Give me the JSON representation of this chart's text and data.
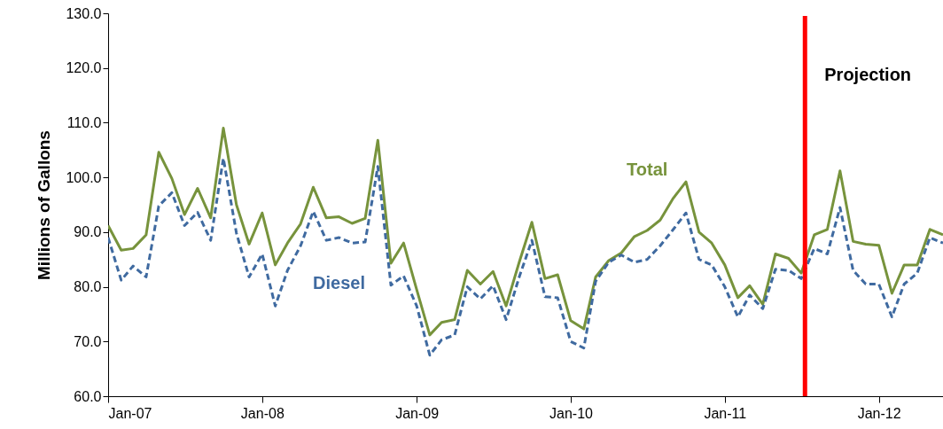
{
  "chart_data": {
    "type": "line",
    "ylabel": "Millions of Gallons",
    "x": [
      "2007-01",
      "2007-02",
      "2007-03",
      "2007-04",
      "2007-05",
      "2007-06",
      "2007-07",
      "2007-08",
      "2007-09",
      "2007-10",
      "2007-11",
      "2007-12",
      "2008-01",
      "2008-02",
      "2008-03",
      "2008-04",
      "2008-05",
      "2008-06",
      "2008-07",
      "2008-08",
      "2008-09",
      "2008-10",
      "2008-11",
      "2008-12",
      "2009-01",
      "2009-02",
      "2009-03",
      "2009-04",
      "2009-05",
      "2009-06",
      "2009-07",
      "2009-08",
      "2009-09",
      "2009-10",
      "2009-11",
      "2009-12",
      "2010-01",
      "2010-02",
      "2010-03",
      "2010-04",
      "2010-05",
      "2010-06",
      "2010-07",
      "2010-08",
      "2010-09",
      "2010-10",
      "2010-11",
      "2010-12",
      "2011-01",
      "2011-02",
      "2011-03",
      "2011-04",
      "2011-05",
      "2011-06",
      "2011-07",
      "2011-08",
      "2011-09",
      "2011-10",
      "2011-11",
      "2011-12",
      "2012-01",
      "2012-02",
      "2012-03",
      "2012-04",
      "2012-05",
      "2012-06"
    ],
    "series": [
      {
        "name": "Total",
        "color": "#77933c",
        "line_style": "solid",
        "values": [
          91.2,
          86.7,
          87.0,
          89.5,
          104.6,
          99.8,
          93.2,
          98.0,
          92.6,
          109.0,
          95.0,
          87.8,
          93.5,
          84.0,
          88.0,
          91.5,
          98.2,
          92.6,
          92.8,
          91.6,
          92.5,
          106.8,
          84.3,
          88.0,
          79.5,
          71.2,
          73.5,
          74.0,
          83.0,
          80.5,
          82.8,
          76.5,
          84.5,
          91.8,
          81.5,
          82.2,
          73.8,
          72.3,
          81.8,
          84.8,
          86.2,
          89.2,
          90.3,
          92.2,
          96.2,
          99.2,
          90.0,
          88.0,
          84.0,
          78.0,
          80.2,
          76.8,
          86.0,
          85.2,
          82.5,
          89.5,
          90.5,
          101.2,
          88.3,
          87.8,
          87.6,
          78.8,
          84.0,
          84.0,
          90.5,
          89.5
        ]
      },
      {
        "name": "Diesel",
        "color": "#3f6aa0",
        "line_style": "dashed",
        "values": [
          89.0,
          81.2,
          83.8,
          81.8,
          94.8,
          97.2,
          91.2,
          93.6,
          88.5,
          103.5,
          89.8,
          81.8,
          86.0,
          76.5,
          83.0,
          87.5,
          93.8,
          88.5,
          89.0,
          88.0,
          88.2,
          102.0,
          80.3,
          82.0,
          76.5,
          67.5,
          70.3,
          71.2,
          80.0,
          77.8,
          80.2,
          74.0,
          81.8,
          88.5,
          78.2,
          78.0,
          70.0,
          68.8,
          81.0,
          84.5,
          85.8,
          84.5,
          85.0,
          87.5,
          90.5,
          93.5,
          85.0,
          84.0,
          80.0,
          74.5,
          78.5,
          76.0,
          83.2,
          83.0,
          81.5,
          87.0,
          86.0,
          94.5,
          83.0,
          80.5,
          80.5,
          74.5,
          80.5,
          82.5,
          89.0,
          88.0
        ]
      }
    ],
    "xlim": [
      "2007-01",
      "2012-06"
    ],
    "xticks": [
      {
        "value": "2007-01",
        "label": "Jan-07"
      },
      {
        "value": "2008-01",
        "label": "Jan-08"
      },
      {
        "value": "2009-01",
        "label": "Jan-09"
      },
      {
        "value": "2010-01",
        "label": "Jan-10"
      },
      {
        "value": "2011-01",
        "label": "Jan-11"
      },
      {
        "value": "2012-01",
        "label": "Jan-12"
      }
    ],
    "ylim": [
      60,
      130
    ],
    "yticks": [
      {
        "value": 60,
        "label": "60.0"
      },
      {
        "value": 70,
        "label": "70.0"
      },
      {
        "value": 80,
        "label": "80.0"
      },
      {
        "value": 90,
        "label": "90.0"
      },
      {
        "value": 100,
        "label": "100.0"
      },
      {
        "value": 110,
        "label": "110.0"
      },
      {
        "value": 120,
        "label": "120.0"
      },
      {
        "value": 130,
        "label": "130.0"
      }
    ],
    "ref_lines": [
      {
        "axis": "x",
        "value": "2011-07-10",
        "label": "Projection",
        "color": "#ff0000",
        "line_style": "solid"
      }
    ],
    "grid": false,
    "legend": false,
    "marker": "none"
  }
}
